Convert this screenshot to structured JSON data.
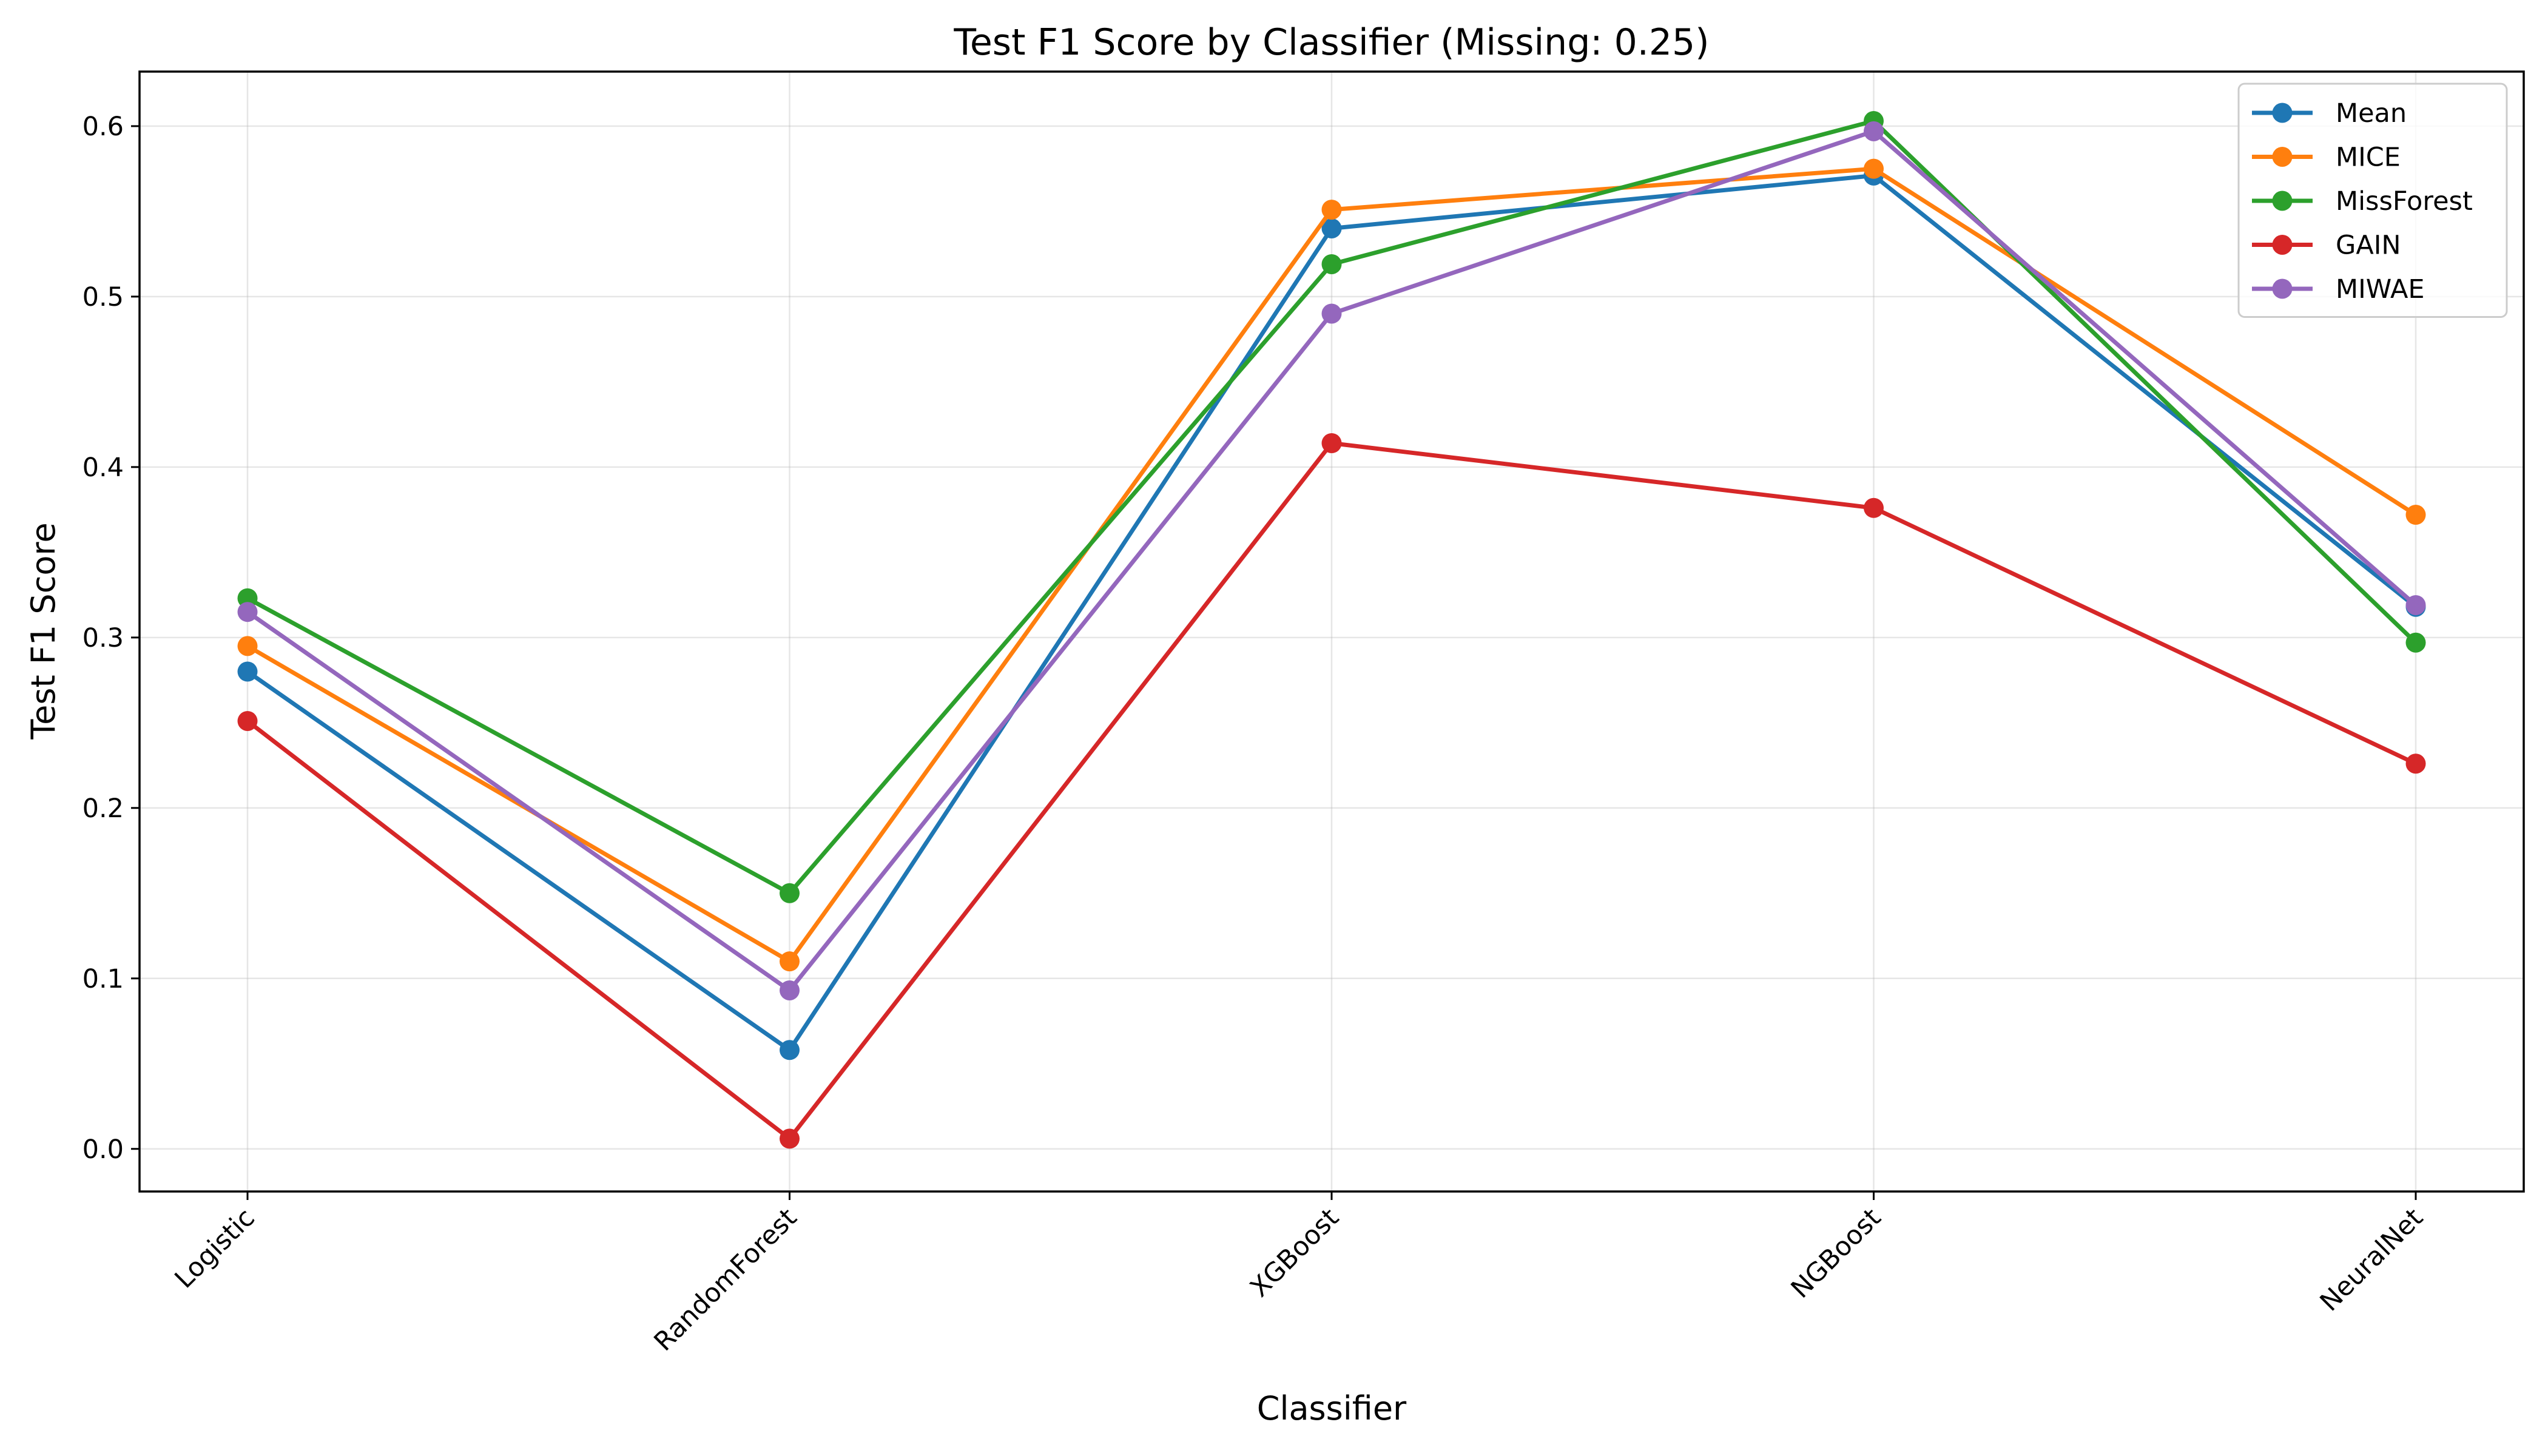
{
  "chart_data": {
    "type": "line",
    "title": "Test F1 Score by Classifier (Missing: 0.25)",
    "xlabel": "Classifier",
    "ylabel": "Test F1 Score",
    "categories": [
      "Logistic",
      "RandomForest",
      "XGBoost",
      "NGBoost",
      "NeuralNet"
    ],
    "ylim": [
      -0.025,
      0.632
    ],
    "yticks": [
      0.0,
      0.1,
      0.2,
      0.3,
      0.4,
      0.5,
      0.6
    ],
    "ytick_labels": [
      "0.0",
      "0.1",
      "0.2",
      "0.3",
      "0.4",
      "0.5",
      "0.6"
    ],
    "grid": true,
    "legend_position": "top-right",
    "series": [
      {
        "name": "Mean",
        "color": "#1f77b4",
        "values": [
          0.28,
          0.058,
          0.54,
          0.571,
          0.318
        ]
      },
      {
        "name": "MICE",
        "color": "#ff7f0e",
        "values": [
          0.295,
          0.11,
          0.551,
          0.575,
          0.372
        ]
      },
      {
        "name": "MissForest",
        "color": "#2ca02c",
        "values": [
          0.323,
          0.15,
          0.519,
          0.603,
          0.297
        ]
      },
      {
        "name": "GAIN",
        "color": "#d62728",
        "values": [
          0.251,
          0.006,
          0.414,
          0.376,
          0.226
        ]
      },
      {
        "name": "MIWAE",
        "color": "#9467bd",
        "values": [
          0.315,
          0.093,
          0.49,
          0.597,
          0.319
        ]
      }
    ]
  }
}
